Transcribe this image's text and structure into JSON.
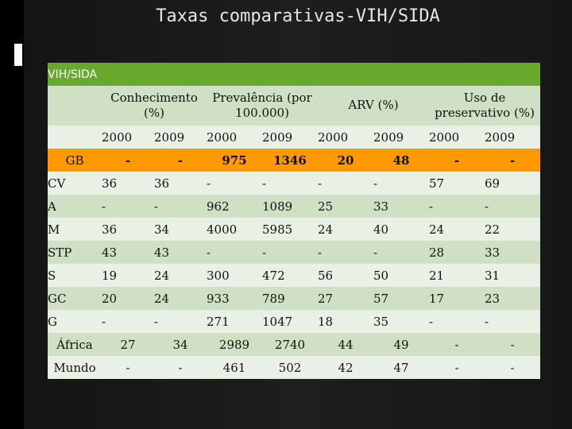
{
  "slide_title": "Taxas comparativas-VIH/SIDA",
  "table": {
    "caption": "VIH/SIDA",
    "groups": [
      "Conhecimento (%)",
      "Prevalência (por 100.000)",
      "ARV (%)",
      "Uso de preservativo (%)"
    ],
    "years": [
      "2000",
      "2009",
      "2000",
      "2009",
      "2000",
      "2009",
      "2000",
      "2009"
    ],
    "rows": [
      {
        "label": "GB",
        "values": [
          "-",
          "-",
          "975",
          "1346",
          "20",
          "48",
          "-",
          "-"
        ]
      },
      {
        "label": "CV",
        "values": [
          "36",
          "36",
          "-",
          "-",
          "-",
          "-",
          "57",
          "69"
        ]
      },
      {
        "label": "A",
        "values": [
          "-",
          "-",
          "962",
          "1089",
          "25",
          "33",
          "-",
          "-"
        ]
      },
      {
        "label": "M",
        "values": [
          "36",
          "34",
          "4000",
          "5985",
          "24",
          "40",
          "24",
          "22"
        ]
      },
      {
        "label": "STP",
        "values": [
          "43",
          "43",
          "-",
          "-",
          "-",
          "-",
          "28",
          "33"
        ]
      },
      {
        "label": "S",
        "values": [
          "19",
          "24",
          "300",
          "472",
          "56",
          "50",
          "21",
          "31"
        ]
      },
      {
        "label": "GC",
        "values": [
          "20",
          "24",
          "933",
          "789",
          "27",
          "57",
          "17",
          "23"
        ]
      },
      {
        "label": "G",
        "values": [
          "-",
          "-",
          "271",
          "1047",
          "18",
          "35",
          "-",
          "-"
        ]
      },
      {
        "label": "África",
        "values": [
          "27",
          "34",
          "2989",
          "2740",
          "44",
          "49",
          "-",
          "-"
        ]
      },
      {
        "label": "Mundo",
        "values": [
          "-",
          "-",
          "461",
          "502",
          "42",
          "47",
          "-",
          "-"
        ]
      }
    ]
  },
  "colors": {
    "header_green": "#67a82d",
    "band_dark": "#cfe0c4",
    "band_light": "#e9f0e4",
    "highlight_orange": "#ff9900"
  }
}
